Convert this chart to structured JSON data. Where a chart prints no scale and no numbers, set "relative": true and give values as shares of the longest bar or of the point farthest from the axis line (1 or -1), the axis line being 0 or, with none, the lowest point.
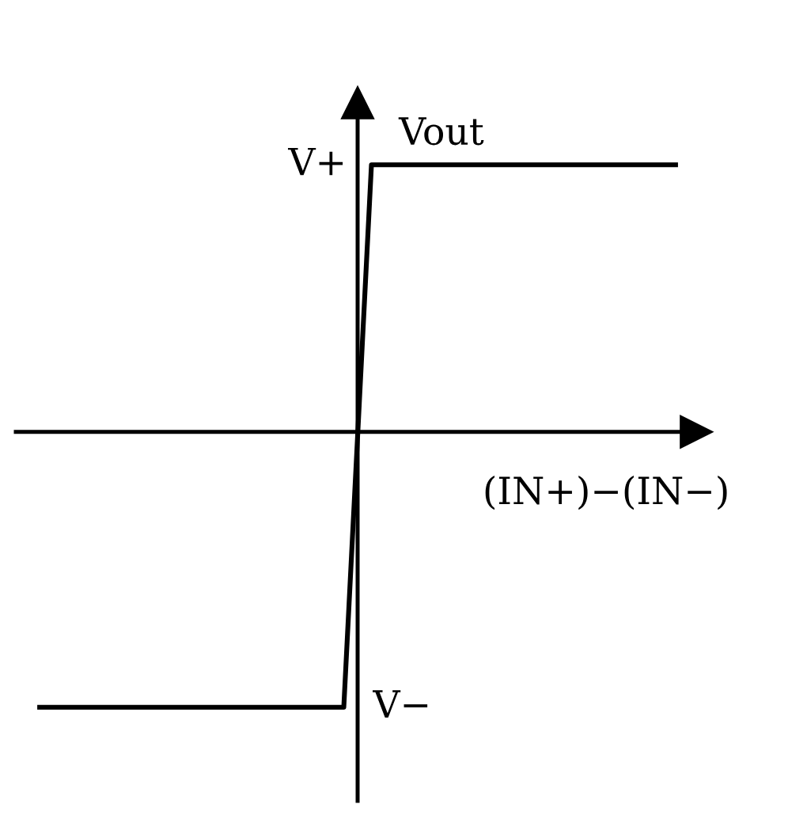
{
  "chart_data": {
    "type": "line",
    "relative": true,
    "categories": [
      null,
      null,
      null,
      null,
      null,
      null,
      null,
      null,
      null,
      null,
      null,
      null,
      null,
      null,
      null,
      null,
      null,
      null,
      null,
      null,
      null,
      null,
      null,
      null
    ],
    "values": [
      -1,
      -1,
      -1,
      -1,
      -1,
      -1,
      -1,
      -1,
      -1,
      -1,
      -1,
      -1,
      0.97,
      0.97,
      0.97,
      0.97,
      0.97,
      0.97,
      0.97,
      0.97,
      0.97,
      0.97,
      0.97,
      0.97
    ],
    "color": "#000000",
    "xlabel": "(IN+)−(IN−)",
    "ylabel": "Vout",
    "annotations": [
      "V+",
      "V−"
    ],
    "marker": "none",
    "line_style": "solid"
  }
}
